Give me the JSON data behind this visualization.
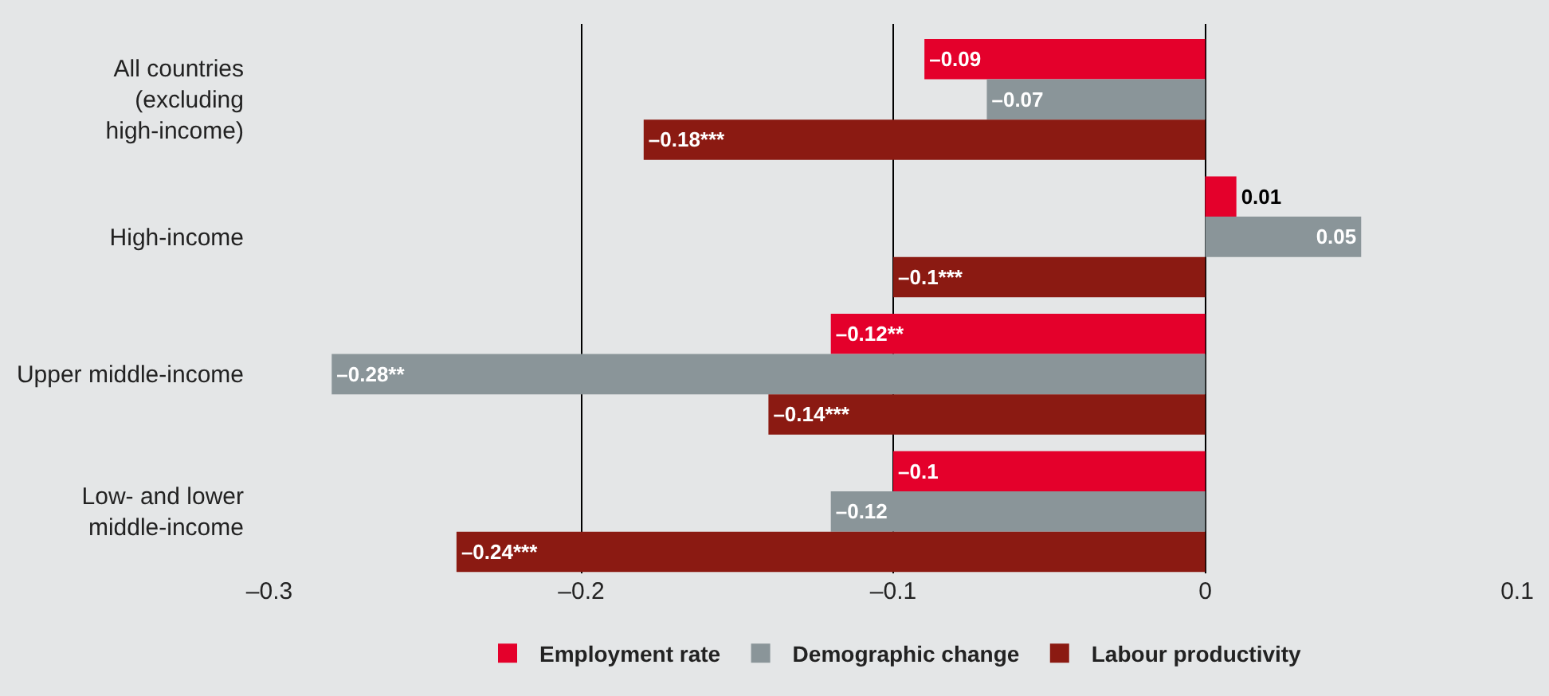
{
  "chart_data": {
    "type": "bar",
    "orientation": "horizontal",
    "categories": [
      "All countries\n(excluding\nhigh-income)",
      "High-income",
      "Upper middle-income",
      "Low- and lower\nmiddle-income"
    ],
    "series": [
      {
        "name": "Employment rate",
        "color": "#e4002b",
        "values": [
          -0.09,
          0.01,
          -0.12,
          -0.1
        ],
        "value_labels": [
          "–0.09",
          "0.01",
          "–0.12**",
          "–0.1"
        ]
      },
      {
        "name": "Demographic change",
        "color": "#8a9599",
        "values": [
          -0.07,
          0.05,
          -0.28,
          -0.12
        ],
        "value_labels": [
          "–0.07",
          "0.05",
          "–0.28**",
          "–0.12"
        ]
      },
      {
        "name": "Labour productivity",
        "color": "#8b1a12",
        "values": [
          -0.18,
          -0.1,
          -0.14,
          -0.24
        ],
        "value_labels": [
          "–0.18***",
          "–0.1***",
          "–0.14***",
          "–0.24***"
        ]
      }
    ],
    "xlim": [
      -0.3,
      0.1
    ],
    "xticks": [
      {
        "value": -0.3,
        "label": "–0.3"
      },
      {
        "value": -0.2,
        "label": "–0.2"
      },
      {
        "value": -0.1,
        "label": "–0.1"
      },
      {
        "value": 0,
        "label": "0"
      },
      {
        "value": 0.1,
        "label": "0.1"
      }
    ],
    "grid": "x",
    "legend": "bottom"
  }
}
